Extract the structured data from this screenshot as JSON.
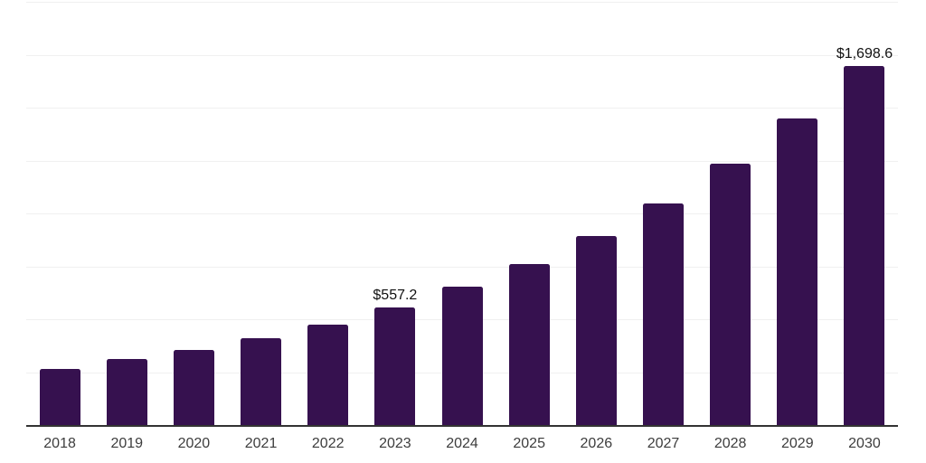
{
  "chart": {
    "background_color": "#ffffff",
    "bar_color": "#36114F",
    "gridline_color": "#f0f0f0",
    "axis_line_color": "#333333",
    "tick_label_color": "#3d3d3d",
    "data_label_color": "#111111"
  },
  "chart_data": {
    "type": "bar",
    "title": "",
    "xlabel": "",
    "ylabel": "",
    "categories": [
      "2018",
      "2019",
      "2020",
      "2021",
      "2022",
      "2023",
      "2024",
      "2025",
      "2026",
      "2027",
      "2028",
      "2029",
      "2030"
    ],
    "values": [
      267,
      310,
      353,
      411,
      475,
      557.2,
      652,
      760,
      895,
      1049,
      1236,
      1447,
      1698.6
    ],
    "data_labels": {
      "2023": "$557.2",
      "2030": "$1,698.6"
    },
    "ylim": [
      0,
      2000
    ],
    "gridline_step": 250,
    "grid": true,
    "legend": "none"
  }
}
